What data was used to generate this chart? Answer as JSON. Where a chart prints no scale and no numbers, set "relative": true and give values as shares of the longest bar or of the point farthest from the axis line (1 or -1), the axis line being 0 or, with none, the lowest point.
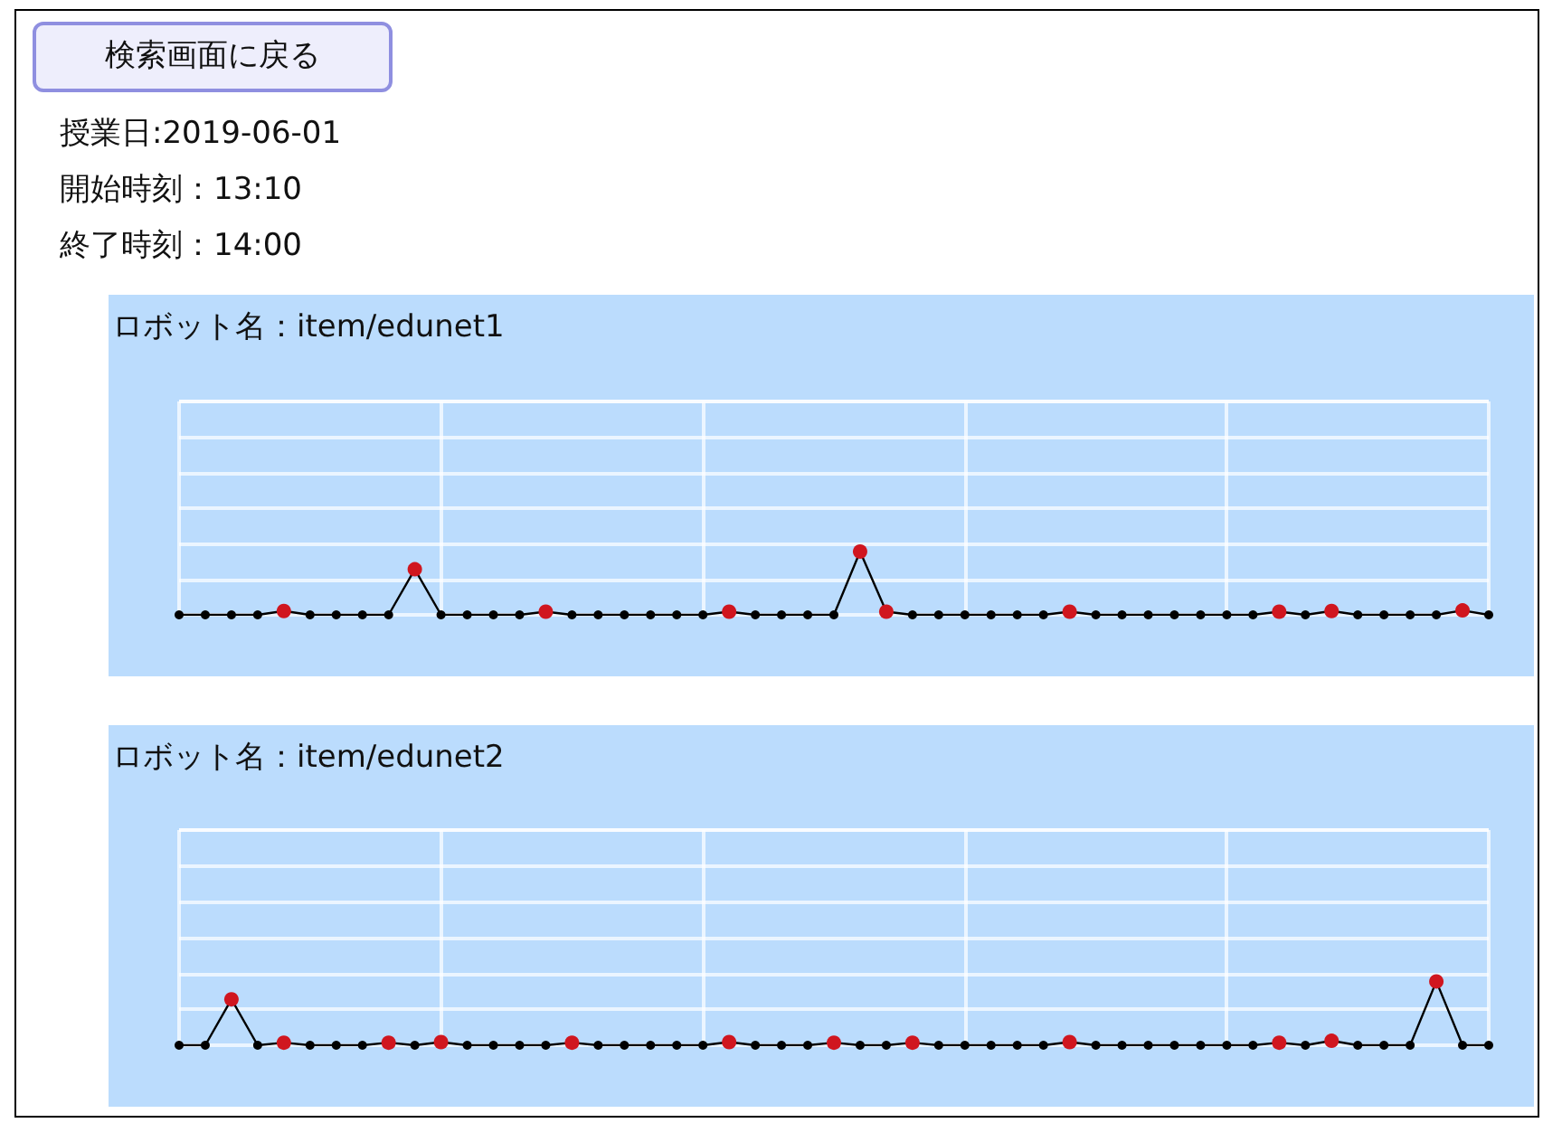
{
  "chart_data": [
    {
      "type": "line",
      "title": "ロボット名：item/edunet1",
      "annotations": [
        "検索画面に戻る",
        "授業日:2019-06-01",
        "開始時刻：13:10",
        "終了時刻：14:00"
      ],
      "relative": true,
      "grid": true,
      "marker": "circle",
      "color": "#000000",
      "categories": [
        null,
        null,
        null,
        null,
        null,
        null,
        null,
        null,
        null,
        null,
        null,
        null,
        null,
        null,
        null,
        null,
        null,
        null,
        null,
        null,
        null,
        null,
        null,
        null,
        null,
        null,
        null,
        null,
        null,
        null,
        null,
        null,
        null,
        null,
        null,
        null,
        null,
        null,
        null,
        null,
        null,
        null,
        null,
        null,
        null,
        null,
        null,
        null,
        null,
        null,
        null
      ],
      "values": [
        0,
        0,
        0,
        0,
        0.06,
        0,
        0,
        0,
        0,
        0.72,
        0,
        0,
        0,
        0,
        0.05,
        0,
        0,
        0,
        0,
        0,
        0,
        0.05,
        0,
        0,
        0,
        0,
        1,
        0.05,
        0,
        0,
        0,
        0,
        0,
        0,
        0.05,
        0,
        0,
        0,
        0,
        0,
        0,
        0,
        0.05,
        0,
        0.06,
        0,
        0,
        0,
        0,
        0.07,
        0
      ],
      "colors": [
        "#000000",
        "#000000",
        "#000000",
        "#000000",
        "#d0161f",
        "#000000",
        "#000000",
        "#000000",
        "#000000",
        "#d0161f",
        "#000000",
        "#000000",
        "#000000",
        "#000000",
        "#d0161f",
        "#000000",
        "#000000",
        "#000000",
        "#000000",
        "#000000",
        "#000000",
        "#d0161f",
        "#000000",
        "#000000",
        "#000000",
        "#000000",
        "#d0161f",
        "#d0161f",
        "#000000",
        "#000000",
        "#000000",
        "#000000",
        "#000000",
        "#000000",
        "#d0161f",
        "#000000",
        "#000000",
        "#000000",
        "#000000",
        "#000000",
        "#000000",
        "#000000",
        "#d0161f",
        "#000000",
        "#d0161f",
        "#000000",
        "#000000",
        "#000000",
        "#000000",
        "#d0161f",
        "#000000"
      ]
    },
    {
      "type": "line",
      "title": "ロボット名：item/edunet2",
      "relative": true,
      "grid": true,
      "marker": "circle",
      "color": "#000000",
      "categories": [
        null,
        null,
        null,
        null,
        null,
        null,
        null,
        null,
        null,
        null,
        null,
        null,
        null,
        null,
        null,
        null,
        null,
        null,
        null,
        null,
        null,
        null,
        null,
        null,
        null,
        null,
        null,
        null,
        null,
        null,
        null,
        null,
        null,
        null,
        null,
        null,
        null,
        null,
        null,
        null,
        null,
        null,
        null,
        null,
        null,
        null,
        null,
        null,
        null,
        null,
        null
      ],
      "values": [
        0,
        0,
        0.72,
        0,
        0.04,
        0,
        0,
        0,
        0.04,
        0,
        0.05,
        0,
        0,
        0,
        0,
        0.04,
        0,
        0,
        0,
        0,
        0,
        0.05,
        0,
        0,
        0,
        0.04,
        0,
        0,
        0.04,
        0,
        0,
        0,
        0,
        0,
        0.05,
        0,
        0,
        0,
        0,
        0,
        0,
        0,
        0.04,
        0,
        0.07,
        0,
        0,
        0,
        1,
        0,
        0
      ],
      "colors": [
        "#000000",
        "#000000",
        "#d0161f",
        "#000000",
        "#d0161f",
        "#000000",
        "#000000",
        "#000000",
        "#d0161f",
        "#000000",
        "#d0161f",
        "#000000",
        "#000000",
        "#000000",
        "#000000",
        "#d0161f",
        "#000000",
        "#000000",
        "#000000",
        "#000000",
        "#000000",
        "#d0161f",
        "#000000",
        "#000000",
        "#000000",
        "#d0161f",
        "#000000",
        "#000000",
        "#d0161f",
        "#000000",
        "#000000",
        "#000000",
        "#000000",
        "#000000",
        "#d0161f",
        "#000000",
        "#000000",
        "#000000",
        "#000000",
        "#000000",
        "#000000",
        "#000000",
        "#d0161f",
        "#000000",
        "#d0161f",
        "#000000",
        "#000000",
        "#000000",
        "#d0161f",
        "#000000",
        "#000000"
      ]
    }
  ]
}
